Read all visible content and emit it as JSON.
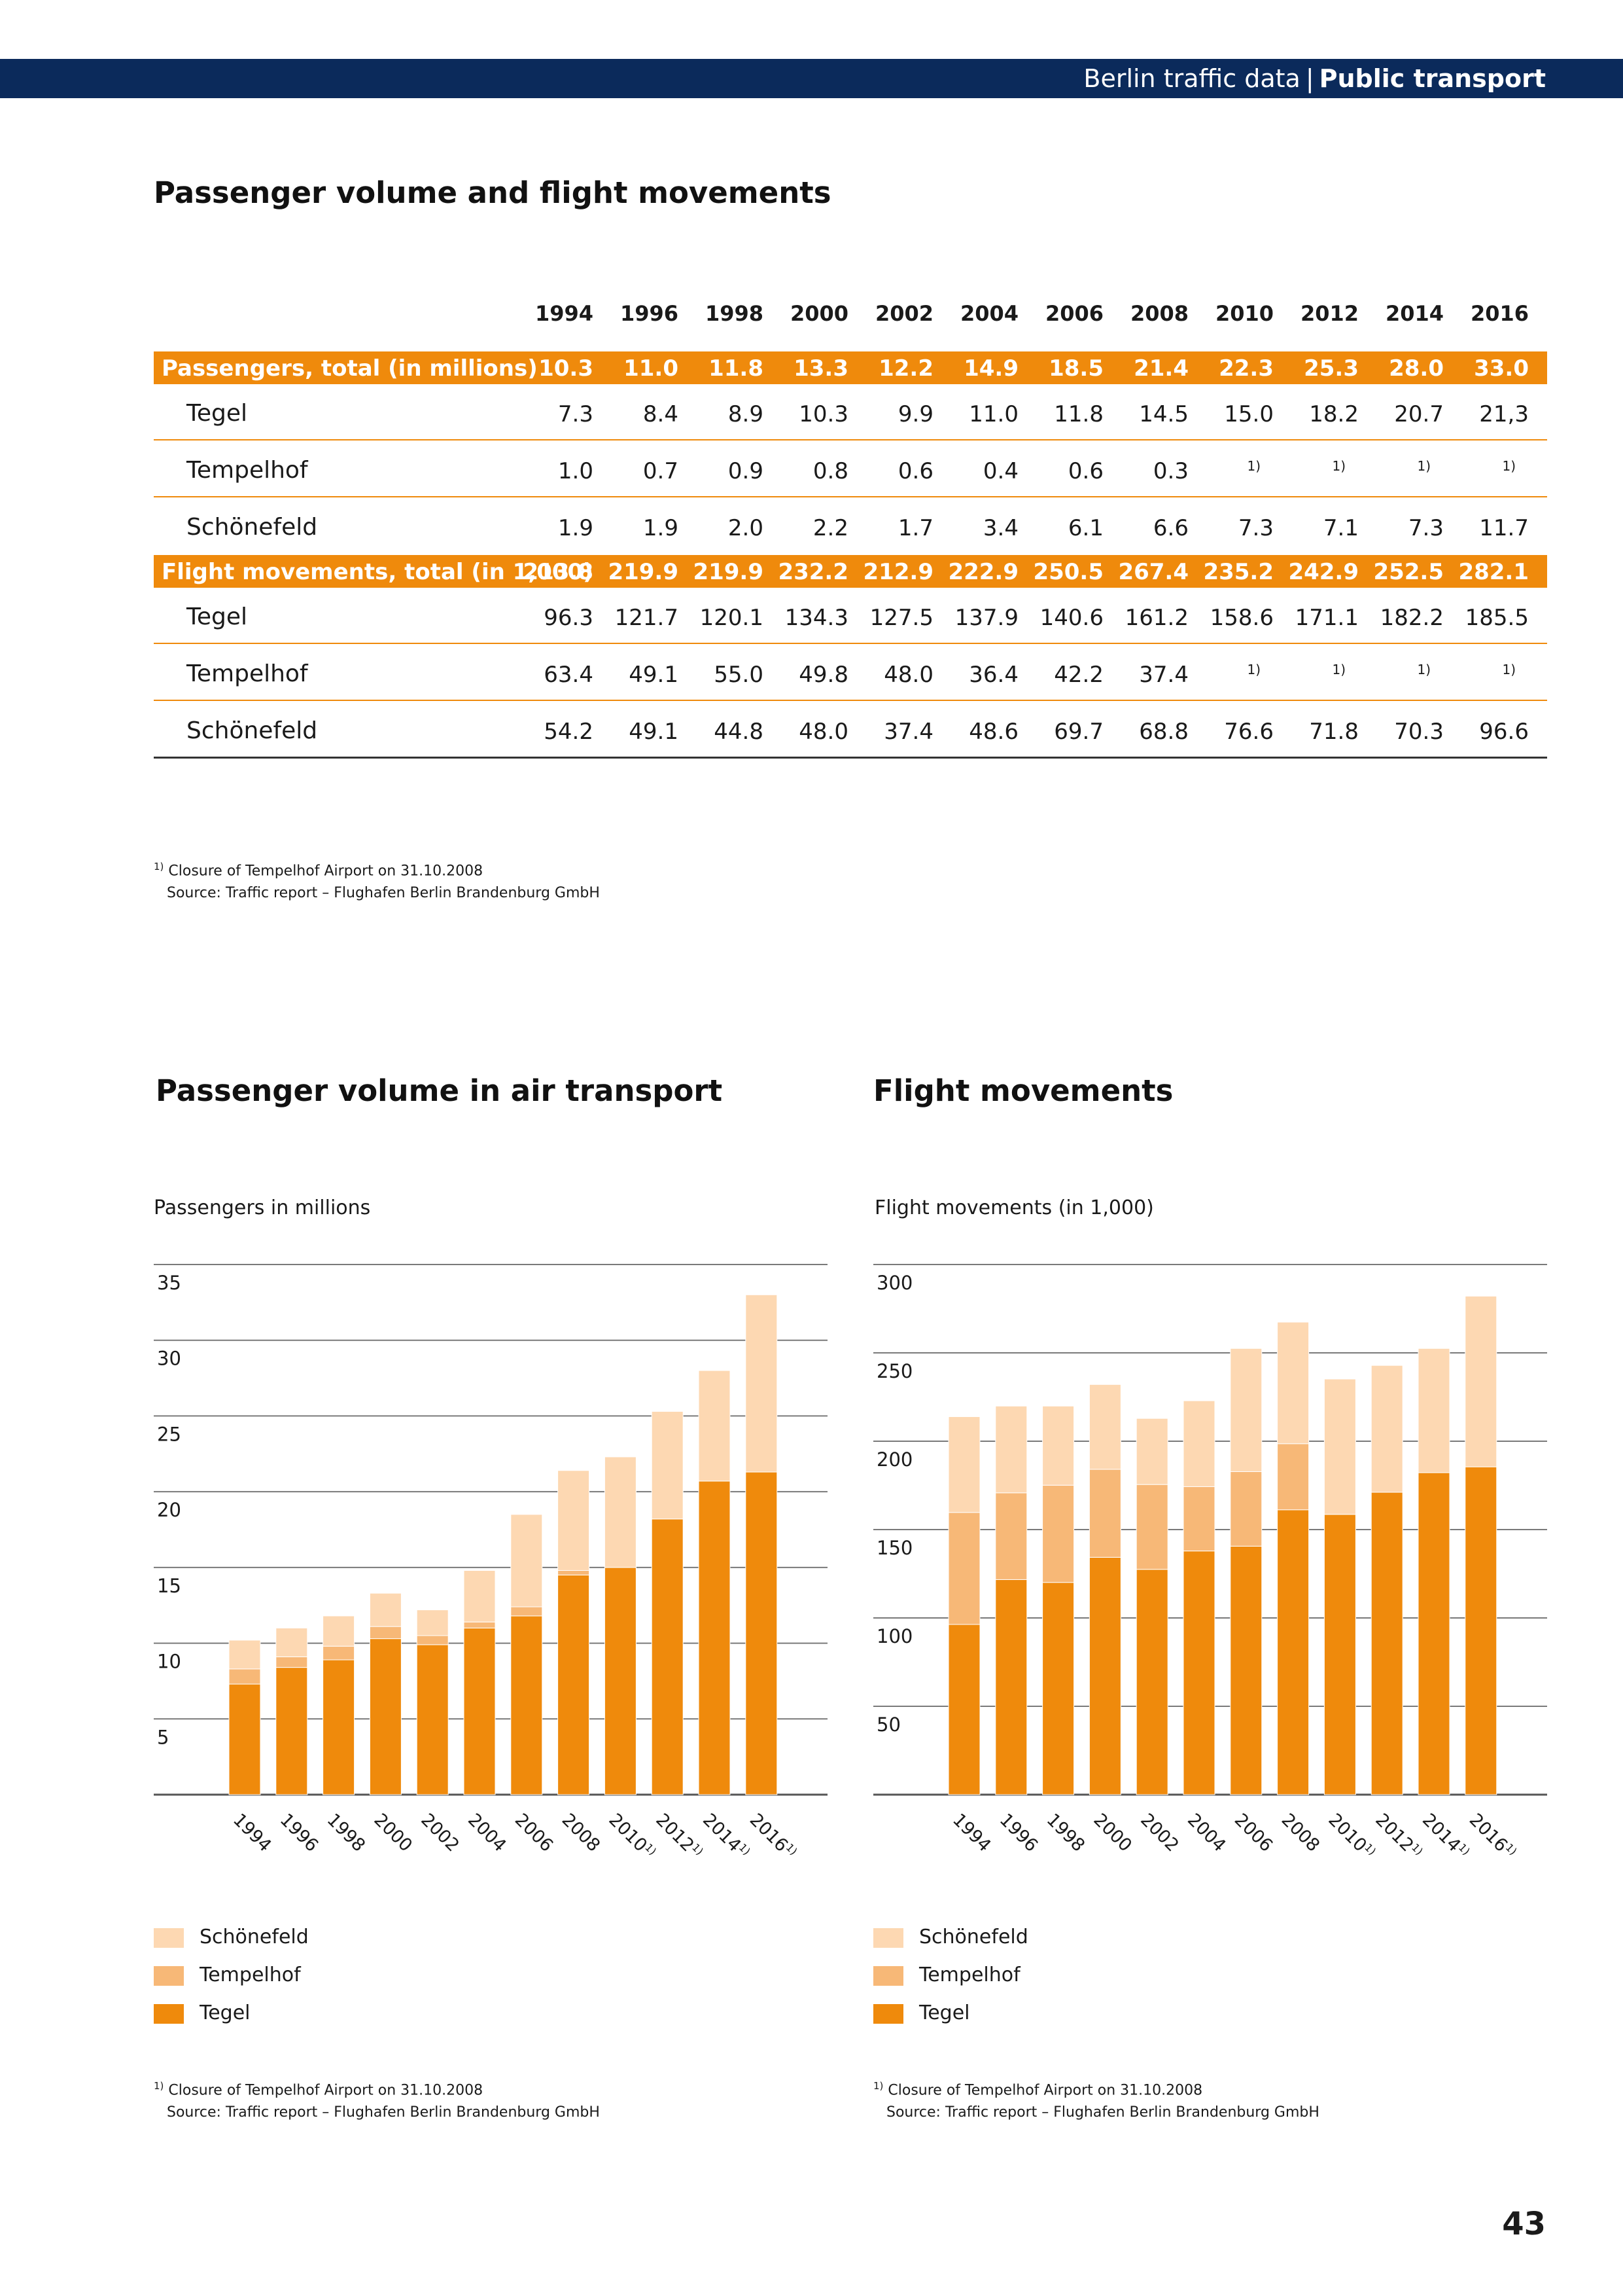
{
  "header": {
    "section": "Berlin traffic data",
    "separator": "|",
    "topic": "Public transport"
  },
  "table_section": {
    "title": "Passenger volume and flight movements",
    "years": [
      "1994",
      "1996",
      "1998",
      "2000",
      "2002",
      "2004",
      "2006",
      "2008",
      "2010",
      "2012",
      "2014",
      "2016"
    ],
    "groups": [
      {
        "label": "Passengers, total (in millions)",
        "totals": [
          "10.3",
          "11.0",
          "11.8",
          "13.3",
          "12.2",
          "14.9",
          "18.5",
          "21.4",
          "22.3",
          "25.3",
          "28.0",
          "33.0"
        ],
        "rows": [
          {
            "label": "Tegel",
            "values": [
              "7.3",
              "8.4",
              "8.9",
              "10.3",
              "9.9",
              "11.0",
              "11.8",
              "14.5",
              "15.0",
              "18.2",
              "20.7",
              "21,3"
            ]
          },
          {
            "label": "Tempelhof",
            "values": [
              "1.0",
              "0.7",
              "0.9",
              "0.8",
              "0.6",
              "0.4",
              "0.6",
              "0.3",
              "1)",
              "1)",
              "1)",
              "1)"
            ]
          },
          {
            "label": "Schönefeld",
            "values": [
              "1.9",
              "1.9",
              "2.0",
              "2.2",
              "1.7",
              "3.4",
              "6.1",
              "6.6",
              "7.3",
              "7.1",
              "7.3",
              "11.7"
            ]
          }
        ]
      },
      {
        "label": "Flight movements, total (in 1,000)",
        "totals": [
          "213.8",
          "219.9",
          "219.9",
          "232.2",
          "212.9",
          "222.9",
          "250.5",
          "267.4",
          "235.2",
          "242.9",
          "252.5",
          "282.1"
        ],
        "rows": [
          {
            "label": "Tegel",
            "values": [
              "96.3",
              "121.7",
              "120.1",
              "134.3",
              "127.5",
              "137.9",
              "140.6",
              "161.2",
              "158.6",
              "171.1",
              "182.2",
              "185.5"
            ]
          },
          {
            "label": "Tempelhof",
            "values": [
              "63.4",
              "49.1",
              "55.0",
              "49.8",
              "48.0",
              "36.4",
              "42.2",
              "37.4",
              "1)",
              "1)",
              "1)",
              "1)"
            ]
          },
          {
            "label": "Schönefeld",
            "values": [
              "54.2",
              "49.1",
              "44.8",
              "48.0",
              "37.4",
              "48.6",
              "69.7",
              "68.8",
              "76.6",
              "71.8",
              "70.3",
              "96.6"
            ]
          }
        ]
      }
    ],
    "footnote_mark": "1)",
    "footnote_text": "Closure of Tempelhof Airport on 31.10.2008",
    "source": "Source: Traffic report – Flughafen Berlin Brandenburg GmbH"
  },
  "colors": {
    "header_bg": "#0b2a5b",
    "orange": "#ef8a0c",
    "tegel": "#ef8a0c",
    "tempelhof": "#f7b877",
    "schoenefeld": "#fdd8b2"
  },
  "legend": [
    {
      "label": "Schönefeld",
      "color": "#fdd8b2"
    },
    {
      "label": "Tempelhof",
      "color": "#f7b877"
    },
    {
      "label": "Tegel",
      "color": "#ef8a0c"
    }
  ],
  "chart_data": [
    {
      "type": "bar",
      "stacked": true,
      "title": "Passenger volume in air transport",
      "ylabel": "Passengers in millions",
      "xlabel": "",
      "ylim": [
        0,
        35
      ],
      "yticks": [
        5,
        10,
        15,
        20,
        25,
        30,
        35
      ],
      "grid": true,
      "legend_position": "bottom-left",
      "categories": [
        "1994",
        "1996",
        "1998",
        "2000",
        "2002",
        "2004",
        "2006",
        "2008",
        "2010",
        "2012",
        "2014",
        "2016"
      ],
      "category_marks": [
        "",
        "",
        "",
        "",
        "",
        "",
        "",
        "",
        "1)",
        "1)",
        "1)",
        "1)"
      ],
      "series": [
        {
          "name": "Tegel",
          "values": [
            7.3,
            8.4,
            8.9,
            10.3,
            9.9,
            11.0,
            11.8,
            14.5,
            15.0,
            18.2,
            20.7,
            21.3
          ]
        },
        {
          "name": "Tempelhof",
          "values": [
            1.0,
            0.7,
            0.9,
            0.8,
            0.6,
            0.4,
            0.6,
            0.3,
            0,
            0,
            0,
            0
          ]
        },
        {
          "name": "Schönefeld",
          "values": [
            1.9,
            1.9,
            2.0,
            2.2,
            1.7,
            3.4,
            6.1,
            6.6,
            7.3,
            7.1,
            7.3,
            11.7
          ]
        }
      ],
      "footnote_mark": "1)",
      "footnote_text": "Closure of Tempelhof Airport on 31.10.2008",
      "source": "Source: Traffic report – Flughafen Berlin Brandenburg GmbH"
    },
    {
      "type": "bar",
      "stacked": true,
      "title": "Flight movements",
      "ylabel": "Flight movements (in 1,000)",
      "xlabel": "",
      "ylim": [
        0,
        300
      ],
      "yticks": [
        50,
        100,
        150,
        200,
        250,
        300
      ],
      "grid": true,
      "legend_position": "bottom-left",
      "categories": [
        "1994",
        "1996",
        "1998",
        "2000",
        "2002",
        "2004",
        "2006",
        "2008",
        "2010",
        "2012",
        "2014",
        "2016"
      ],
      "category_marks": [
        "",
        "",
        "",
        "",
        "",
        "",
        "",
        "",
        "1)",
        "1)",
        "1)",
        "1)"
      ],
      "series": [
        {
          "name": "Tegel",
          "values": [
            96.3,
            121.7,
            120.1,
            134.3,
            127.5,
            137.9,
            140.6,
            161.2,
            158.6,
            171.1,
            182.2,
            185.5
          ]
        },
        {
          "name": "Tempelhof",
          "values": [
            63.4,
            49.1,
            55.0,
            49.8,
            48.0,
            36.4,
            42.2,
            37.4,
            0,
            0,
            0,
            0
          ]
        },
        {
          "name": "Schönefeld",
          "values": [
            54.2,
            49.1,
            44.8,
            48.0,
            37.4,
            48.6,
            69.7,
            68.8,
            76.6,
            71.8,
            70.3,
            96.6
          ]
        }
      ],
      "footnote_mark": "1)",
      "footnote_text": "Closure of Tempelhof Airport on 31.10.2008",
      "source": "Source: Traffic report – Flughafen Berlin Brandenburg GmbH"
    }
  ],
  "page_number": "43"
}
